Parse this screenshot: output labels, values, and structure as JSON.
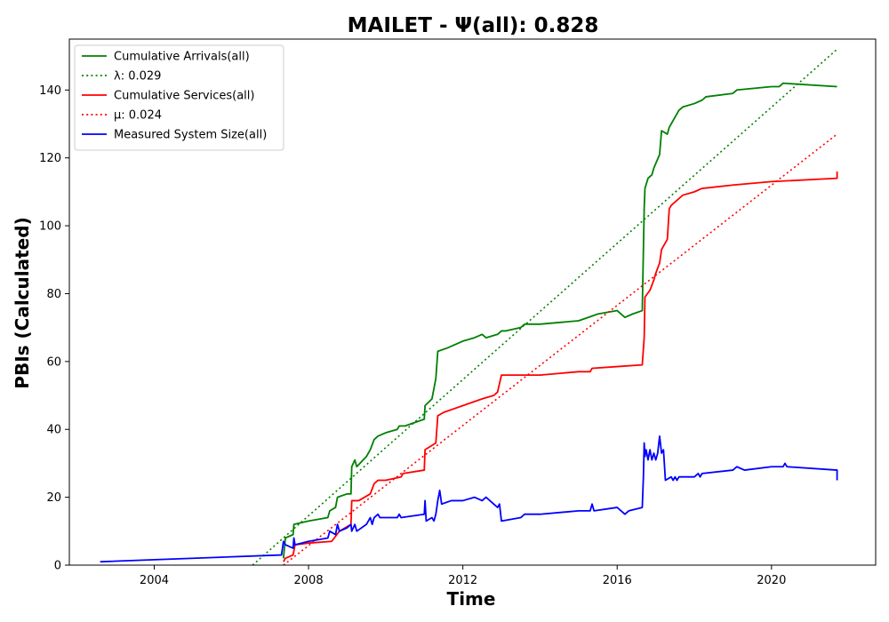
{
  "chart_data": {
    "type": "line",
    "title": "MAILET -  Ψ(all): 0.828",
    "xlabel": "Time",
    "ylabel": "PBIs (Calculated)",
    "xlim": [
      2001.8,
      2022.7
    ],
    "ylim": [
      0,
      155
    ],
    "x_ticks": [
      2004,
      2008,
      2012,
      2016,
      2020
    ],
    "y_ticks": [
      0,
      20,
      40,
      60,
      80,
      100,
      120,
      140
    ],
    "grid": false,
    "legend_position": "top-left",
    "legend": [
      {
        "label": "Cumulative Arrivals(all)",
        "color": "#008000",
        "style": "solid"
      },
      {
        "label": "λ: 0.029",
        "color": "#008000",
        "style": "dotted"
      },
      {
        "label": "Cumulative Services(all)",
        "color": "#ff0000",
        "style": "solid"
      },
      {
        "label": "μ: 0.024",
        "color": "#ff0000",
        "style": "dotted"
      },
      {
        "label": "Measured System Size(all)",
        "color": "#0000ff",
        "style": "solid"
      }
    ],
    "series": [
      {
        "name": "Cumulative Arrivals(all)",
        "color": "#008000",
        "style": "solid",
        "points": [
          [
            2007.35,
            2
          ],
          [
            2007.4,
            8
          ],
          [
            2007.6,
            9
          ],
          [
            2007.62,
            12
          ],
          [
            2008.0,
            13
          ],
          [
            2008.5,
            14
          ],
          [
            2008.55,
            16
          ],
          [
            2008.7,
            17
          ],
          [
            2008.75,
            20
          ],
          [
            2009.0,
            21
          ],
          [
            2009.1,
            21
          ],
          [
            2009.12,
            29
          ],
          [
            2009.2,
            31
          ],
          [
            2009.25,
            29
          ],
          [
            2009.5,
            32
          ],
          [
            2009.6,
            34
          ],
          [
            2009.7,
            37
          ],
          [
            2009.8,
            38
          ],
          [
            2010.0,
            39
          ],
          [
            2010.3,
            40
          ],
          [
            2010.35,
            41
          ],
          [
            2010.5,
            41
          ],
          [
            2011.0,
            43
          ],
          [
            2011.02,
            47
          ],
          [
            2011.2,
            49
          ],
          [
            2011.3,
            55
          ],
          [
            2011.35,
            63
          ],
          [
            2011.6,
            64
          ],
          [
            2012.0,
            66
          ],
          [
            2012.3,
            67
          ],
          [
            2012.5,
            68
          ],
          [
            2012.6,
            67
          ],
          [
            2012.9,
            68
          ],
          [
            2013.0,
            69
          ],
          [
            2013.1,
            69
          ],
          [
            2013.5,
            70
          ],
          [
            2013.6,
            71
          ],
          [
            2014.0,
            71
          ],
          [
            2015.0,
            72
          ],
          [
            2015.5,
            74
          ],
          [
            2016.0,
            75
          ],
          [
            2016.2,
            73
          ],
          [
            2016.4,
            74
          ],
          [
            2016.65,
            75
          ],
          [
            2016.7,
            105
          ],
          [
            2016.72,
            111
          ],
          [
            2016.8,
            114
          ],
          [
            2016.9,
            115
          ],
          [
            2016.95,
            117
          ],
          [
            2017.1,
            121
          ],
          [
            2017.15,
            128
          ],
          [
            2017.3,
            127
          ],
          [
            2017.35,
            129
          ],
          [
            2017.5,
            132
          ],
          [
            2017.6,
            134
          ],
          [
            2017.7,
            135
          ],
          [
            2018.0,
            136
          ],
          [
            2018.2,
            137
          ],
          [
            2018.3,
            138
          ],
          [
            2019.0,
            139
          ],
          [
            2019.1,
            140
          ],
          [
            2020.0,
            141
          ],
          [
            2020.2,
            141
          ],
          [
            2020.3,
            142
          ],
          [
            2021.7,
            141
          ]
        ]
      },
      {
        "name": "λ: 0.029",
        "color": "#008000",
        "style": "dotted",
        "points": [
          [
            2006.55,
            0
          ],
          [
            2021.7,
            152
          ]
        ]
      },
      {
        "name": "Cumulative Services(all)",
        "color": "#ff0000",
        "style": "solid",
        "points": [
          [
            2007.35,
            1
          ],
          [
            2007.4,
            2
          ],
          [
            2007.6,
            3
          ],
          [
            2007.65,
            6
          ],
          [
            2008.0,
            6.5
          ],
          [
            2008.6,
            7
          ],
          [
            2008.8,
            10
          ],
          [
            2009.1,
            12
          ],
          [
            2009.12,
            19
          ],
          [
            2009.3,
            19
          ],
          [
            2009.6,
            21
          ],
          [
            2009.7,
            24
          ],
          [
            2009.8,
            25
          ],
          [
            2010.0,
            25
          ],
          [
            2010.4,
            26
          ],
          [
            2010.45,
            27
          ],
          [
            2011.0,
            28
          ],
          [
            2011.02,
            34
          ],
          [
            2011.3,
            36
          ],
          [
            2011.35,
            44
          ],
          [
            2011.5,
            45
          ],
          [
            2012.0,
            47
          ],
          [
            2012.5,
            49
          ],
          [
            2012.8,
            50
          ],
          [
            2012.9,
            51
          ],
          [
            2013.0,
            56
          ],
          [
            2014.0,
            56
          ],
          [
            2015.0,
            57
          ],
          [
            2015.3,
            57
          ],
          [
            2015.35,
            58
          ],
          [
            2016.0,
            58.5
          ],
          [
            2016.65,
            59
          ],
          [
            2016.7,
            67
          ],
          [
            2016.72,
            79
          ],
          [
            2016.85,
            81
          ],
          [
            2016.95,
            84
          ],
          [
            2017.0,
            86
          ],
          [
            2017.1,
            89
          ],
          [
            2017.15,
            93
          ],
          [
            2017.3,
            96
          ],
          [
            2017.35,
            105
          ],
          [
            2017.4,
            106
          ],
          [
            2017.5,
            107
          ],
          [
            2017.6,
            108
          ],
          [
            2017.7,
            109
          ],
          [
            2018.0,
            110
          ],
          [
            2018.2,
            111
          ],
          [
            2019.0,
            112
          ],
          [
            2020.0,
            113
          ],
          [
            2021.7,
            114
          ],
          [
            2021.7,
            116
          ]
        ]
      },
      {
        "name": "μ: 0.024",
        "color": "#ff0000",
        "style": "dotted",
        "points": [
          [
            2007.35,
            0
          ],
          [
            2021.7,
            127
          ]
        ]
      },
      {
        "name": "Measured System Size(all)",
        "color": "#0000ff",
        "style": "solid",
        "points": [
          [
            2002.6,
            1
          ],
          [
            2007.3,
            3
          ],
          [
            2007.35,
            7
          ],
          [
            2007.4,
            6
          ],
          [
            2007.6,
            5
          ],
          [
            2007.62,
            8
          ],
          [
            2007.65,
            6
          ],
          [
            2008.0,
            7
          ],
          [
            2008.5,
            8
          ],
          [
            2008.55,
            10
          ],
          [
            2008.7,
            9
          ],
          [
            2008.75,
            12
          ],
          [
            2008.8,
            10
          ],
          [
            2009.0,
            11
          ],
          [
            2009.1,
            12
          ],
          [
            2009.12,
            10
          ],
          [
            2009.2,
            12
          ],
          [
            2009.25,
            10
          ],
          [
            2009.5,
            12
          ],
          [
            2009.6,
            14
          ],
          [
            2009.65,
            12
          ],
          [
            2009.7,
            14
          ],
          [
            2009.8,
            15
          ],
          [
            2009.85,
            14
          ],
          [
            2010.0,
            14
          ],
          [
            2010.3,
            14
          ],
          [
            2010.35,
            15
          ],
          [
            2010.4,
            14
          ],
          [
            2011.0,
            15
          ],
          [
            2011.02,
            19
          ],
          [
            2011.05,
            13
          ],
          [
            2011.2,
            14
          ],
          [
            2011.25,
            13
          ],
          [
            2011.3,
            15
          ],
          [
            2011.35,
            19
          ],
          [
            2011.4,
            22
          ],
          [
            2011.45,
            18
          ],
          [
            2011.7,
            19
          ],
          [
            2012.0,
            19
          ],
          [
            2012.3,
            20
          ],
          [
            2012.5,
            19
          ],
          [
            2012.6,
            20
          ],
          [
            2012.9,
            17
          ],
          [
            2012.95,
            18
          ],
          [
            2013.0,
            13
          ],
          [
            2013.5,
            14
          ],
          [
            2013.6,
            15
          ],
          [
            2014.0,
            15
          ],
          [
            2015.0,
            16
          ],
          [
            2015.3,
            16
          ],
          [
            2015.35,
            18
          ],
          [
            2015.4,
            16
          ],
          [
            2016.0,
            17
          ],
          [
            2016.2,
            15
          ],
          [
            2016.3,
            16
          ],
          [
            2016.65,
            17
          ],
          [
            2016.68,
            26
          ],
          [
            2016.7,
            36
          ],
          [
            2016.72,
            32
          ],
          [
            2016.75,
            34
          ],
          [
            2016.8,
            31
          ],
          [
            2016.85,
            34
          ],
          [
            2016.9,
            31
          ],
          [
            2016.95,
            33
          ],
          [
            2017.0,
            31
          ],
          [
            2017.05,
            33
          ],
          [
            2017.1,
            38
          ],
          [
            2017.15,
            33
          ],
          [
            2017.2,
            34
          ],
          [
            2017.25,
            25
          ],
          [
            2017.4,
            26
          ],
          [
            2017.45,
            25
          ],
          [
            2017.5,
            26
          ],
          [
            2017.55,
            25
          ],
          [
            2017.6,
            26
          ],
          [
            2017.7,
            26
          ],
          [
            2018.0,
            26
          ],
          [
            2018.1,
            27
          ],
          [
            2018.15,
            26
          ],
          [
            2018.2,
            27
          ],
          [
            2019.0,
            28
          ],
          [
            2019.1,
            29
          ],
          [
            2019.3,
            28
          ],
          [
            2020.0,
            29
          ],
          [
            2020.3,
            29
          ],
          [
            2020.35,
            30
          ],
          [
            2020.4,
            29
          ],
          [
            2021.7,
            28
          ],
          [
            2021.7,
            25
          ]
        ]
      }
    ]
  }
}
